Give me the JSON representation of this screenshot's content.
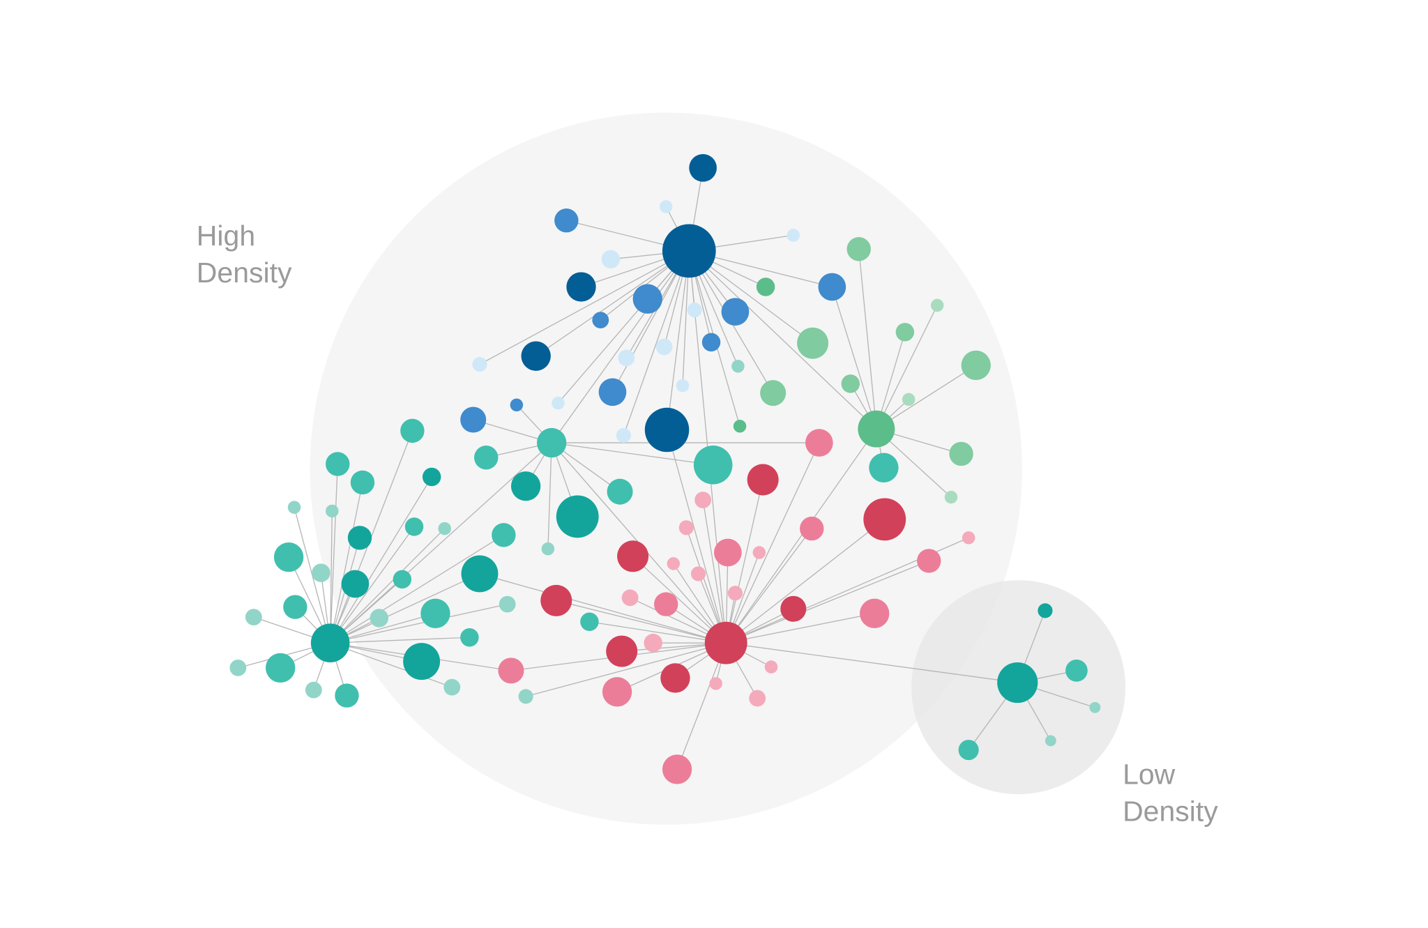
{
  "labels": {
    "high_density": [
      "High",
      "Density"
    ],
    "low_density": [
      "Low",
      "Density"
    ]
  }
}
